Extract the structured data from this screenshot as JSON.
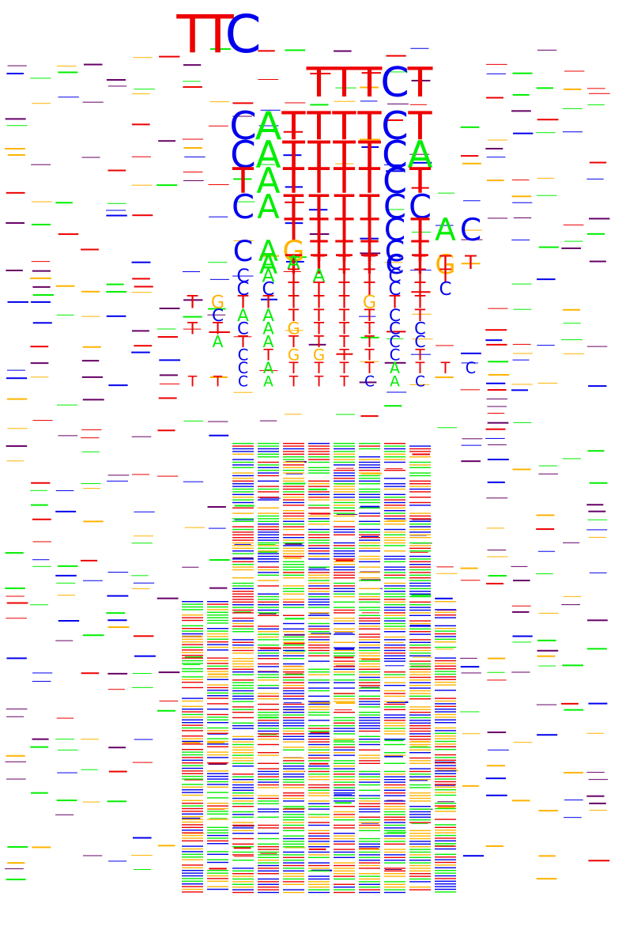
{
  "figure": {
    "type": "stacked sequence logos",
    "row_count": 36,
    "position_count": 24,
    "colors": {
      "A": "#00ee00",
      "C": "#0000ee",
      "G": "#ffb300",
      "T": "#ee0000",
      "other": "#660066"
    }
  },
  "motifs": [
    {
      "offset": 7,
      "letters": "TTC",
      "note": "row 1 left block"
    },
    {
      "offset": 12,
      "letters": "TTTCT",
      "note": "row 1 right block"
    },
    {
      "offset": 9,
      "letters": "CATTTTCT"
    },
    {
      "offset": 9,
      "letters": "CATTTTCA"
    },
    {
      "offset": 9,
      "letters": "TATTTTCT"
    },
    {
      "offset": 9,
      "letters": "CATTTTCC"
    },
    {
      "offset": 11,
      "letters": "TTTTCTAC"
    },
    {
      "offset": 9,
      "letters": "CAGTTTCT"
    },
    {
      "offset": 10,
      "letters": "ATTTTCTG"
    },
    {
      "offset": 10,
      "letters": "AATTTCTTT"
    },
    {
      "offset": 9,
      "letters": "CATATTCTT"
    },
    {
      "offset": 9,
      "letters": "CCTTTTCTC"
    },
    {
      "offset": 7,
      "letters": "TGTTTTTGTT"
    },
    {
      "offset": 8,
      "letters": "CAATTTTCT"
    },
    {
      "offset": 7,
      "letters": "TTCAGTTTCC"
    },
    {
      "offset": 8,
      "letters": "ATATTTTCC"
    },
    {
      "offset": 9,
      "letters": "CTGGTTCT"
    },
    {
      "offset": 9,
      "letters": "CATTTTATTC"
    },
    {
      "offset": 7,
      "letters": "TTCATTTCAC"
    }
  ]
}
